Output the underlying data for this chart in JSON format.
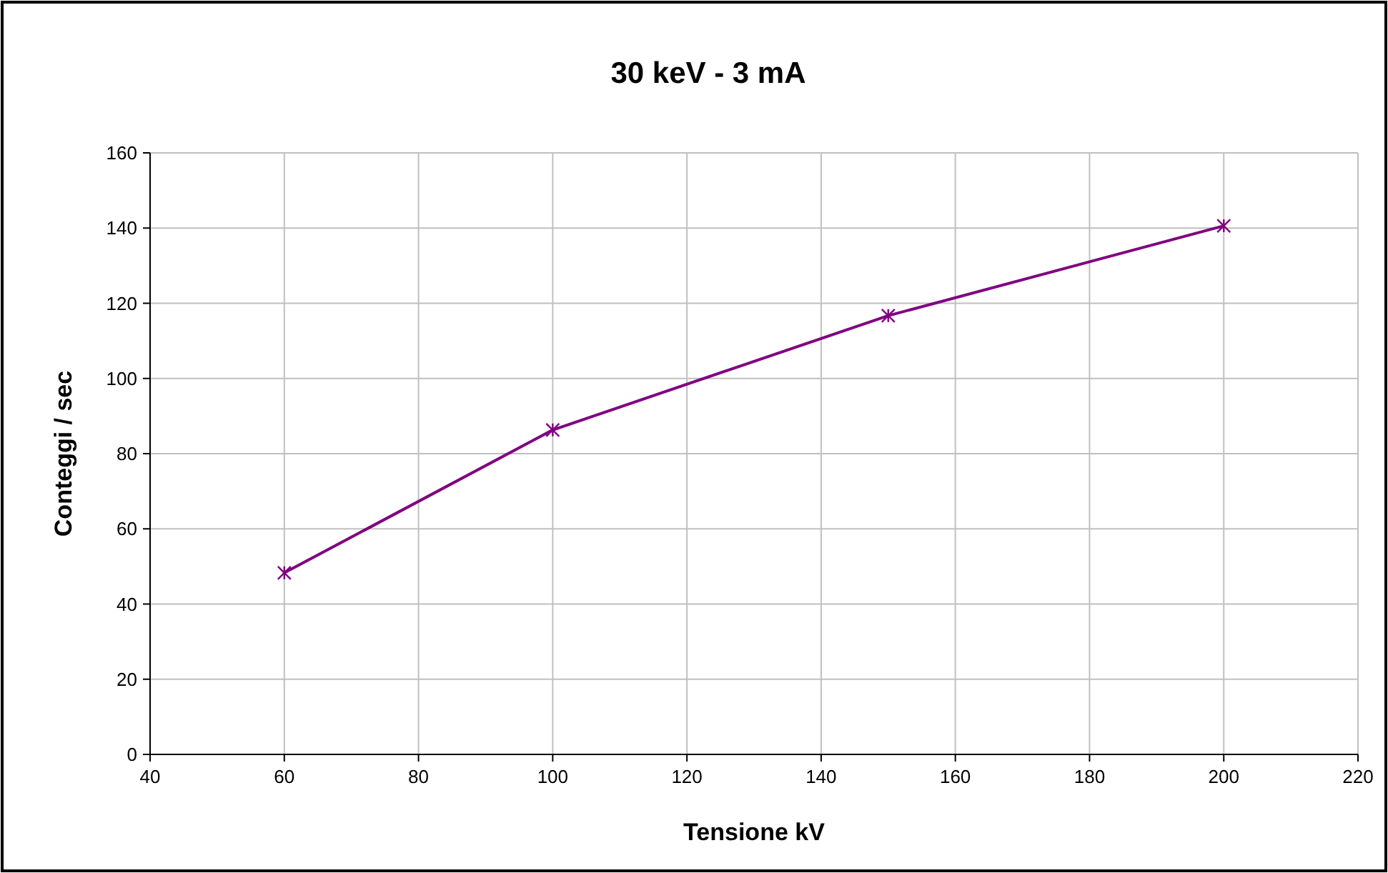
{
  "chart_data": {
    "type": "line",
    "title": "30 keV - 3 mA",
    "xlabel": "Tensione kV",
    "ylabel": "Conteggi / sec",
    "x": [
      60,
      100,
      150,
      200
    ],
    "series": [
      {
        "color": "#800080",
        "values": [
          48.3,
          86.3,
          116.7,
          140.6
        ]
      }
    ],
    "xlim": [
      40,
      220
    ],
    "xticks": [
      40,
      60,
      80,
      100,
      120,
      140,
      160,
      180,
      200,
      220
    ],
    "ylim": [
      0,
      160
    ],
    "yticks": [
      0,
      20,
      40,
      60,
      80,
      100,
      120,
      140,
      160
    ],
    "grid": true,
    "marker": "cross",
    "line_style": "solid"
  }
}
